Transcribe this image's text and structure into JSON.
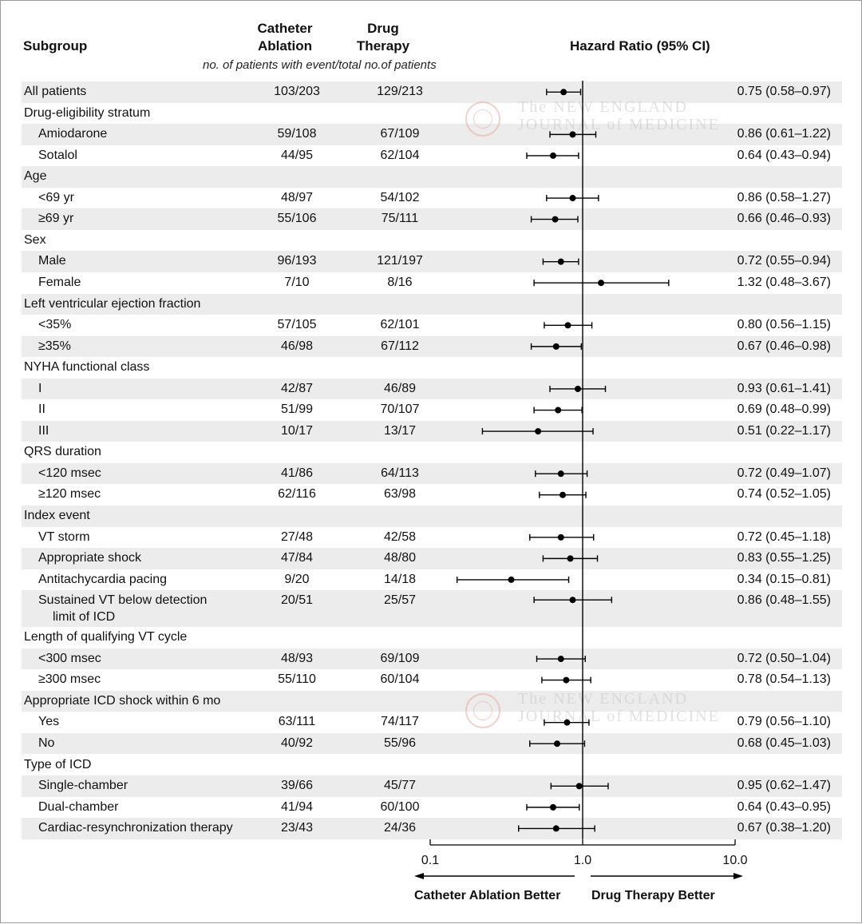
{
  "header": {
    "subgroup": "Subgroup",
    "ablation_line1": "Catheter",
    "ablation_line2": "Ablation",
    "drug_line1": "Drug",
    "drug_line2": "Therapy",
    "hazard": "Hazard Ratio (95% CI)",
    "note": "no. of patients with event/total no.of patients"
  },
  "watermark": {
    "line1": "The NEW ENGLAND",
    "line2": "JOURNAL of MEDICINE"
  },
  "chart_data": {
    "type": "forest",
    "x_scale": "log",
    "xlim": [
      0.1,
      10.0
    ],
    "reference_line": 1.0,
    "ticks": [
      "0.1",
      "1.0",
      "10.0"
    ],
    "tick_values": [
      0.1,
      1.0,
      10.0
    ],
    "left_label": "Catheter Ablation Better",
    "right_label": "Drug Therapy Better",
    "rows": [
      {
        "label": "All patients",
        "indent": false,
        "ablation": "103/203",
        "drug": "129/213",
        "hr_text": "0.75 (0.58–0.97)",
        "hr": 0.75,
        "lo": 0.58,
        "hi": 0.97
      },
      {
        "label": "Drug-eligibility stratum",
        "indent": false
      },
      {
        "label": "Amiodarone",
        "indent": true,
        "ablation": "59/108",
        "drug": "67/109",
        "hr_text": "0.86 (0.61–1.22)",
        "hr": 0.86,
        "lo": 0.61,
        "hi": 1.22
      },
      {
        "label": "Sotalol",
        "indent": true,
        "ablation": "44/95",
        "drug": "62/104",
        "hr_text": "0.64 (0.43–0.94)",
        "hr": 0.64,
        "lo": 0.43,
        "hi": 0.94
      },
      {
        "label": "Age",
        "indent": false
      },
      {
        "label": "<69 yr",
        "indent": true,
        "ablation": "48/97",
        "drug": "54/102",
        "hr_text": "0.86 (0.58–1.27)",
        "hr": 0.86,
        "lo": 0.58,
        "hi": 1.27
      },
      {
        "label": "≥69 yr",
        "indent": true,
        "ablation": "55/106",
        "drug": "75/111",
        "hr_text": "0.66 (0.46–0.93)",
        "hr": 0.66,
        "lo": 0.46,
        "hi": 0.93
      },
      {
        "label": "Sex",
        "indent": false
      },
      {
        "label": "Male",
        "indent": true,
        "ablation": "96/193",
        "drug": "121/197",
        "hr_text": "0.72 (0.55–0.94)",
        "hr": 0.72,
        "lo": 0.55,
        "hi": 0.94
      },
      {
        "label": "Female",
        "indent": true,
        "ablation": "7/10",
        "drug": "8/16",
        "hr_text": "1.32 (0.48–3.67)",
        "hr": 1.32,
        "lo": 0.48,
        "hi": 3.67
      },
      {
        "label": "Left ventricular ejection fraction",
        "indent": false
      },
      {
        "label": "<35%",
        "indent": true,
        "ablation": "57/105",
        "drug": "62/101",
        "hr_text": "0.80 (0.56–1.15)",
        "hr": 0.8,
        "lo": 0.56,
        "hi": 1.15
      },
      {
        "label": "≥35%",
        "indent": true,
        "ablation": "46/98",
        "drug": "67/112",
        "hr_text": "0.67 (0.46–0.98)",
        "hr": 0.67,
        "lo": 0.46,
        "hi": 0.98
      },
      {
        "label": "NYHA functional class",
        "indent": false
      },
      {
        "label": "I",
        "indent": true,
        "ablation": "42/87",
        "drug": "46/89",
        "hr_text": "0.93 (0.61–1.41)",
        "hr": 0.93,
        "lo": 0.61,
        "hi": 1.41
      },
      {
        "label": "II",
        "indent": true,
        "ablation": "51/99",
        "drug": "70/107",
        "hr_text": "0.69 (0.48–0.99)",
        "hr": 0.69,
        "lo": 0.48,
        "hi": 0.99
      },
      {
        "label": "III",
        "indent": true,
        "ablation": "10/17",
        "drug": "13/17",
        "hr_text": "0.51 (0.22–1.17)",
        "hr": 0.51,
        "lo": 0.22,
        "hi": 1.17
      },
      {
        "label": "QRS duration",
        "indent": false
      },
      {
        "label": "<120 msec",
        "indent": true,
        "ablation": "41/86",
        "drug": "64/113",
        "hr_text": "0.72 (0.49–1.07)",
        "hr": 0.72,
        "lo": 0.49,
        "hi": 1.07
      },
      {
        "label": "≥120 msec",
        "indent": true,
        "ablation": "62/116",
        "drug": "63/98",
        "hr_text": "0.74 (0.52–1.05)",
        "hr": 0.74,
        "lo": 0.52,
        "hi": 1.05
      },
      {
        "label": "Index event",
        "indent": false
      },
      {
        "label": "VT storm",
        "indent": true,
        "ablation": "27/48",
        "drug": "42/58",
        "hr_text": "0.72 (0.45–1.18)",
        "hr": 0.72,
        "lo": 0.45,
        "hi": 1.18
      },
      {
        "label": "Appropriate shock",
        "indent": true,
        "ablation": "47/84",
        "drug": "48/80",
        "hr_text": "0.83 (0.55–1.25)",
        "hr": 0.83,
        "lo": 0.55,
        "hi": 1.25
      },
      {
        "label": "Antitachycardia pacing",
        "indent": true,
        "ablation": "9/20",
        "drug": "14/18",
        "hr_text": "0.34 (0.15–0.81)",
        "hr": 0.34,
        "lo": 0.15,
        "hi": 0.81
      },
      {
        "label": "Sustained VT below detection",
        "label2": "limit of ICD",
        "indent": true,
        "ablation": "20/51",
        "drug": "25/57",
        "hr_text": "0.86 (0.48–1.55)",
        "hr": 0.86,
        "lo": 0.48,
        "hi": 1.55
      },
      {
        "label": "Length of qualifying VT cycle",
        "indent": false
      },
      {
        "label": "<300 msec",
        "indent": true,
        "ablation": "48/93",
        "drug": "69/109",
        "hr_text": "0.72 (0.50–1.04)",
        "hr": 0.72,
        "lo": 0.5,
        "hi": 1.04
      },
      {
        "label": "≥300 msec",
        "indent": true,
        "ablation": "55/110",
        "drug": "60/104",
        "hr_text": "0.78 (0.54–1.13)",
        "hr": 0.78,
        "lo": 0.54,
        "hi": 1.13
      },
      {
        "label": "Appropriate ICD shock within 6 mo",
        "indent": false
      },
      {
        "label": "Yes",
        "indent": true,
        "ablation": "63/111",
        "drug": "74/117",
        "hr_text": "0.79 (0.56–1.10)",
        "hr": 0.79,
        "lo": 0.56,
        "hi": 1.1
      },
      {
        "label": "No",
        "indent": true,
        "ablation": "40/92",
        "drug": "55/96",
        "hr_text": "0.68 (0.45–1.03)",
        "hr": 0.68,
        "lo": 0.45,
        "hi": 1.03
      },
      {
        "label": "Type of ICD",
        "indent": false
      },
      {
        "label": "Single-chamber",
        "indent": true,
        "ablation": "39/66",
        "drug": "45/77",
        "hr_text": "0.95 (0.62–1.47)",
        "hr": 0.95,
        "lo": 0.62,
        "hi": 1.47
      },
      {
        "label": "Dual-chamber",
        "indent": true,
        "ablation": "41/94",
        "drug": "60/100",
        "hr_text": "0.64 (0.43–0.95)",
        "hr": 0.64,
        "lo": 0.43,
        "hi": 0.95
      },
      {
        "label": "Cardiac-resynchronization therapy",
        "indent": true,
        "ablation": "23/43",
        "drug": "24/36",
        "hr_text": "0.67 (0.38–1.20)",
        "hr": 0.67,
        "lo": 0.38,
        "hi": 1.2
      }
    ]
  }
}
